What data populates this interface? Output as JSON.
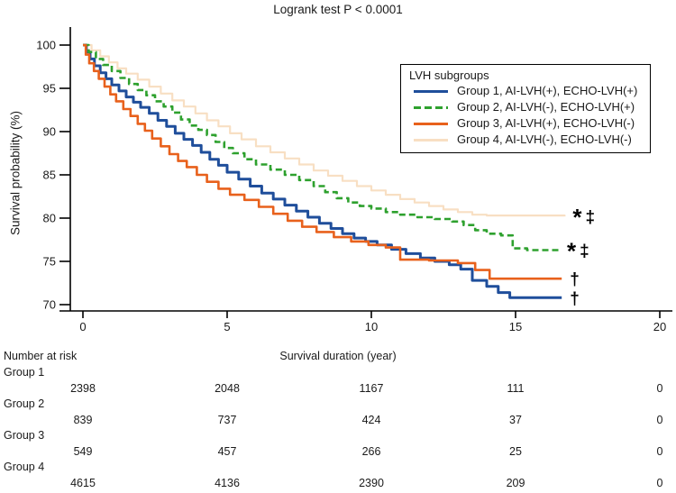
{
  "chart_data": {
    "type": "line",
    "subtype": "kaplan-meier-step",
    "title": "Logrank test P < 0.0001",
    "xlabel": "Survival duration (year)",
    "ylabel": "Survival probability (%)",
    "xlim": [
      0,
      20
    ],
    "ylim": [
      70,
      100
    ],
    "xticks": [
      0,
      5,
      10,
      15,
      20
    ],
    "yticks": [
      100,
      95,
      90,
      85,
      80,
      75,
      70
    ],
    "grid": false,
    "legend_title": "LVH subgroups",
    "legend_position": "upper right",
    "series": [
      {
        "name": "Group 1, AI-LVH(+), ECHO-LVH(+)",
        "short": "Group 1",
        "color": "#1F4E9B",
        "dash": "solid",
        "width": 3,
        "z": 2,
        "end_symbol": "†",
        "points": [
          [
            0,
            100
          ],
          [
            0.12,
            99.2
          ],
          [
            0.25,
            98.4
          ],
          [
            0.4,
            97.6
          ],
          [
            0.6,
            96.8
          ],
          [
            0.8,
            96.1
          ],
          [
            1.0,
            95.4
          ],
          [
            1.25,
            94.7
          ],
          [
            1.5,
            94.0
          ],
          [
            1.75,
            93.4
          ],
          [
            2.0,
            92.8
          ],
          [
            2.3,
            92.1
          ],
          [
            2.6,
            91.3
          ],
          [
            2.9,
            90.6
          ],
          [
            3.2,
            89.8
          ],
          [
            3.5,
            89.1
          ],
          [
            3.8,
            88.4
          ],
          [
            4.1,
            87.6
          ],
          [
            4.4,
            86.8
          ],
          [
            4.7,
            86.1
          ],
          [
            5.0,
            85.3
          ],
          [
            5.4,
            84.5
          ],
          [
            5.8,
            83.7
          ],
          [
            6.2,
            82.9
          ],
          [
            6.6,
            82.2
          ],
          [
            7.0,
            81.5
          ],
          [
            7.4,
            80.8
          ],
          [
            7.8,
            80.1
          ],
          [
            8.2,
            79.4
          ],
          [
            8.6,
            78.8
          ],
          [
            9.0,
            78.2
          ],
          [
            9.4,
            77.7
          ],
          [
            9.8,
            77.3
          ],
          [
            10.2,
            76.9
          ],
          [
            10.7,
            76.4
          ],
          [
            11.2,
            75.9
          ],
          [
            11.7,
            75.4
          ],
          [
            12.2,
            75.0
          ],
          [
            12.7,
            74.6
          ],
          [
            13.1,
            74.1
          ],
          [
            13.5,
            72.8
          ],
          [
            14.0,
            72.1
          ],
          [
            14.4,
            71.4
          ],
          [
            14.8,
            70.8
          ],
          [
            16.6,
            70.8
          ]
        ]
      },
      {
        "name": "Group 2, AI-LVH(-), ECHO-LVH(+)",
        "short": "Group 2",
        "color": "#2EA12E",
        "dash": "dashed",
        "width": 2.6,
        "z": 3,
        "end_symbol": "* ‡",
        "points": [
          [
            0,
            100
          ],
          [
            0.2,
            99.2
          ],
          [
            0.45,
            98.4
          ],
          [
            0.7,
            97.7
          ],
          [
            1.0,
            97.0
          ],
          [
            1.3,
            96.2
          ],
          [
            1.6,
            95.5
          ],
          [
            1.9,
            94.8
          ],
          [
            2.2,
            94.2
          ],
          [
            2.5,
            93.5
          ],
          [
            2.8,
            92.9
          ],
          [
            3.1,
            92.2
          ],
          [
            3.4,
            91.4
          ],
          [
            3.7,
            90.7
          ],
          [
            4.0,
            90.2
          ],
          [
            4.3,
            89.6
          ],
          [
            4.6,
            88.8
          ],
          [
            4.9,
            88.1
          ],
          [
            5.2,
            87.5
          ],
          [
            5.6,
            86.8
          ],
          [
            6.0,
            86.2
          ],
          [
            6.5,
            85.6
          ],
          [
            7.0,
            85.0
          ],
          [
            7.5,
            84.4
          ],
          [
            8.0,
            83.7
          ],
          [
            8.4,
            83.0
          ],
          [
            8.8,
            82.3
          ],
          [
            9.2,
            81.8
          ],
          [
            9.6,
            81.4
          ],
          [
            10.0,
            81.1
          ],
          [
            10.5,
            80.7
          ],
          [
            11.0,
            80.4
          ],
          [
            11.6,
            80.1
          ],
          [
            12.2,
            79.9
          ],
          [
            12.8,
            79.6
          ],
          [
            13.2,
            79.2
          ],
          [
            13.6,
            78.6
          ],
          [
            14.0,
            78.2
          ],
          [
            14.5,
            78.0
          ],
          [
            14.9,
            76.5
          ],
          [
            15.4,
            76.3
          ],
          [
            16.5,
            76.3
          ]
        ]
      },
      {
        "name": "Group 3, AI-LVH(+), ECHO-LVH(-)",
        "short": "Group 3",
        "color": "#E8611C",
        "dash": "solid",
        "width": 2.6,
        "z": 4,
        "end_symbol": "†",
        "points": [
          [
            0,
            100
          ],
          [
            0.1,
            98.9
          ],
          [
            0.22,
            97.9
          ],
          [
            0.38,
            97.0
          ],
          [
            0.55,
            96.1
          ],
          [
            0.75,
            95.2
          ],
          [
            0.95,
            94.3
          ],
          [
            1.15,
            93.5
          ],
          [
            1.4,
            92.6
          ],
          [
            1.65,
            91.8
          ],
          [
            1.9,
            90.9
          ],
          [
            2.15,
            90.1
          ],
          [
            2.4,
            89.2
          ],
          [
            2.7,
            88.3
          ],
          [
            3.0,
            87.4
          ],
          [
            3.3,
            86.6
          ],
          [
            3.6,
            85.9
          ],
          [
            3.95,
            85.0
          ],
          [
            4.3,
            84.2
          ],
          [
            4.7,
            83.4
          ],
          [
            5.1,
            82.7
          ],
          [
            5.6,
            82.1
          ],
          [
            6.1,
            81.3
          ],
          [
            6.6,
            80.5
          ],
          [
            7.1,
            79.7
          ],
          [
            7.6,
            79.0
          ],
          [
            8.1,
            78.4
          ],
          [
            8.7,
            77.8
          ],
          [
            9.3,
            77.3
          ],
          [
            9.9,
            76.9
          ],
          [
            10.5,
            76.6
          ],
          [
            11.0,
            75.2
          ],
          [
            12.0,
            75.1
          ],
          [
            13.0,
            74.8
          ],
          [
            13.6,
            74.0
          ],
          [
            14.1,
            73.0
          ],
          [
            16.6,
            73.0
          ]
        ]
      },
      {
        "name": "Group 4, AI-LVH(-), ECHO-LVH(-)",
        "short": "Group 4",
        "color": "#F8DFC3",
        "dash": "solid",
        "width": 2.2,
        "z": 1,
        "end_symbol": "* ‡",
        "points": [
          [
            0,
            100
          ],
          [
            0.3,
            99.4
          ],
          [
            0.6,
            98.7
          ],
          [
            0.9,
            98.0
          ],
          [
            1.2,
            97.3
          ],
          [
            1.5,
            96.7
          ],
          [
            1.9,
            96.0
          ],
          [
            2.3,
            95.2
          ],
          [
            2.7,
            94.4
          ],
          [
            3.1,
            93.6
          ],
          [
            3.5,
            92.9
          ],
          [
            3.9,
            92.1
          ],
          [
            4.3,
            91.3
          ],
          [
            4.7,
            90.6
          ],
          [
            5.1,
            89.8
          ],
          [
            5.5,
            89.1
          ],
          [
            6.0,
            88.3
          ],
          [
            6.5,
            87.6
          ],
          [
            7.0,
            86.9
          ],
          [
            7.5,
            86.2
          ],
          [
            8.0,
            85.5
          ],
          [
            8.5,
            84.9
          ],
          [
            9.0,
            84.3
          ],
          [
            9.5,
            83.7
          ],
          [
            10.0,
            83.2
          ],
          [
            10.5,
            82.7
          ],
          [
            11.0,
            82.2
          ],
          [
            11.5,
            81.8
          ],
          [
            12.0,
            81.4
          ],
          [
            12.5,
            81.0
          ],
          [
            13.0,
            80.7
          ],
          [
            13.5,
            80.4
          ],
          [
            14.0,
            80.3
          ],
          [
            16.7,
            80.2
          ]
        ]
      }
    ]
  },
  "risk_table": {
    "header": "Number at risk",
    "columns_years": [
      0,
      5,
      10,
      15,
      20
    ],
    "rows": [
      {
        "label": "Group 1",
        "values": [
          "2398",
          "2048",
          "1167",
          "111",
          "0"
        ]
      },
      {
        "label": "Group 2",
        "values": [
          "839",
          "737",
          "424",
          "37",
          "0"
        ]
      },
      {
        "label": "Group 3",
        "values": [
          "549",
          "457",
          "266",
          "25",
          "0"
        ]
      },
      {
        "label": "Group 4",
        "values": [
          "4615",
          "4136",
          "2390",
          "209",
          "0"
        ]
      }
    ]
  }
}
